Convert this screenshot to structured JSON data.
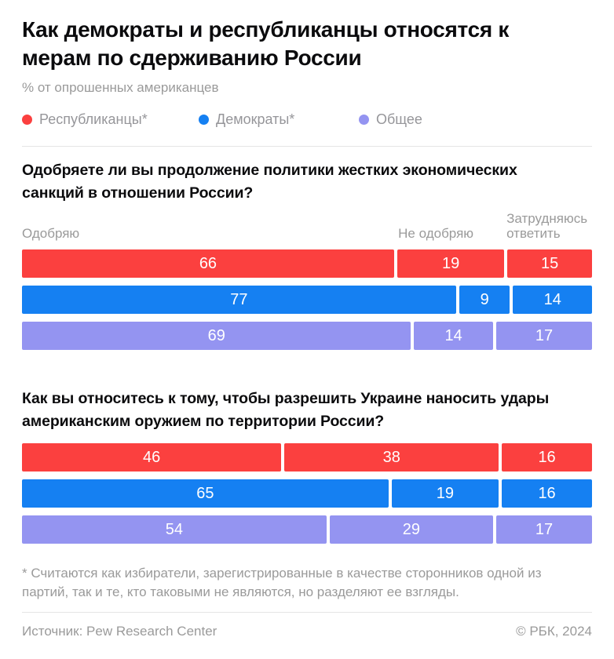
{
  "header": {
    "title": "Как демократы и республиканцы относятся к мерам по сдерживанию России",
    "subtitle": "% от опрошенных американцев"
  },
  "legend": [
    {
      "label": "Республиканцы*",
      "color": "#fb403f"
    },
    {
      "label": "Демократы*",
      "color": "#1580f2"
    },
    {
      "label": "Общее",
      "color": "#9494f1"
    }
  ],
  "colors": {
    "republicans": "#fb403f",
    "democrats": "#1580f2",
    "overall": "#9494f1",
    "muted_text": "#9a9a9a",
    "divider": "#e5e5e5",
    "bar_value_text": "#ffffff"
  },
  "chart_data": [
    {
      "type": "bar",
      "orientation": "horizontal",
      "stacked": true,
      "value_unit": "%",
      "xlim": [
        0,
        100
      ],
      "title": "Одобряете ли вы продолжение политики жестких экономических санкций в отношении России?",
      "categories": [
        "Одобряю",
        "Не одобряю",
        "Затрудняюсь ответить"
      ],
      "series": [
        {
          "name": "Республиканцы*",
          "color": "#fb403f",
          "values": [
            66,
            19,
            15
          ]
        },
        {
          "name": "Демократы*",
          "color": "#1580f2",
          "values": [
            77,
            9,
            14
          ]
        },
        {
          "name": "Общее",
          "color": "#9494f1",
          "values": [
            69,
            14,
            17
          ]
        }
      ]
    },
    {
      "type": "bar",
      "orientation": "horizontal",
      "stacked": true,
      "value_unit": "%",
      "xlim": [
        0,
        100
      ],
      "title": "Как вы относитесь к тому, чтобы разрешить Украине наносить удары американским оружием по территории России?",
      "categories": [
        "Одобряю",
        "Не одобряю",
        "Затрудняюсь ответить"
      ],
      "series": [
        {
          "name": "Республиканцы*",
          "color": "#fb403f",
          "values": [
            46,
            38,
            16
          ]
        },
        {
          "name": "Демократы*",
          "color": "#1580f2",
          "values": [
            65,
            19,
            16
          ]
        },
        {
          "name": "Общее",
          "color": "#9494f1",
          "values": [
            54,
            29,
            17
          ]
        }
      ]
    }
  ],
  "footnote": "* Считаются как избиратели, зарегистрированные в качестве сторонников одной из партий, так и те, кто таковыми не являются, но разделяют ее взгляды.",
  "footer": {
    "source": "Источник: Pew Research Center",
    "copyright": "© РБК, 2024"
  }
}
